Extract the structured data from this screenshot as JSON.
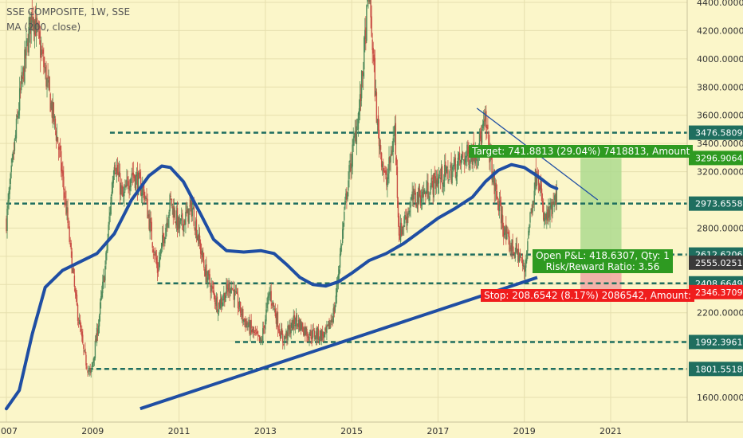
{
  "header": {
    "symbol_line": "SSE COMPOSITE, 1W, SSE",
    "indicator_line": "MA (200, close)"
  },
  "colors": {
    "background": "#fbf6c9",
    "grid": "#e6dfae",
    "candle_up": "#4f8a5b",
    "candle_down": "#c94f45",
    "ma": "#1f4ea3",
    "trendline": "#1f4ea3",
    "level": "#1f6e5f",
    "target_fill": "#a9d98c",
    "target_label": "#2e9a21",
    "stop_fill": "#f0a1a1",
    "stop_label": "#f01d1d",
    "pnl_label": "#2e9a21",
    "price_tag": "#1f6e5f"
  },
  "chart_data": {
    "type": "candlestick",
    "title": "SSE COMPOSITE, 1W, SSE",
    "indicator": "MA (200, close)",
    "x_ticks": [
      "2007",
      "2009",
      "2011",
      "2013",
      "2015",
      "2017",
      "2019",
      "2021"
    ],
    "y_ticks": [
      "1600.0000",
      "1800.0000",
      "2000.0000",
      "2200.0000",
      "2400.0000",
      "2600.0000",
      "2800.0000",
      "3000.0000",
      "3200.0000",
      "3400.0000",
      "3600.0000",
      "3800.0000",
      "4000.0000",
      "4200.0000",
      "4400.0000"
    ],
    "ylim": [
      1520,
      4420
    ],
    "xlim": [
      2007,
      2022.6
    ],
    "close_path": [
      [
        2007.0,
        2850
      ],
      [
        2007.3,
        3700
      ],
      [
        2007.6,
        4350
      ],
      [
        2007.9,
        3900
      ],
      [
        2008.2,
        3400
      ],
      [
        2008.4,
        2900
      ],
      [
        2008.6,
        2300
      ],
      [
        2008.8,
        1900
      ],
      [
        2008.95,
        1750
      ],
      [
        2009.1,
        2050
      ],
      [
        2009.3,
        2550
      ],
      [
        2009.5,
        3300
      ],
      [
        2009.7,
        3000
      ],
      [
        2009.9,
        3200
      ],
      [
        2010.2,
        3050
      ],
      [
        2010.5,
        2500
      ],
      [
        2010.8,
        3000
      ],
      [
        2011.0,
        2800
      ],
      [
        2011.3,
        2950
      ],
      [
        2011.6,
        2500
      ],
      [
        2011.9,
        2250
      ],
      [
        2012.2,
        2400
      ],
      [
        2012.5,
        2150
      ],
      [
        2012.9,
        1980
      ],
      [
        2013.1,
        2350
      ],
      [
        2013.4,
        2000
      ],
      [
        2013.7,
        2150
      ],
      [
        2014.0,
        2050
      ],
      [
        2014.4,
        2040
      ],
      [
        2014.6,
        2220
      ],
      [
        2014.9,
        3100
      ],
      [
        2015.2,
        3700
      ],
      [
        2015.4,
        4500
      ],
      [
        2015.6,
        3500
      ],
      [
        2015.8,
        3100
      ],
      [
        2016.0,
        3500
      ],
      [
        2016.1,
        2750
      ],
      [
        2016.4,
        3000
      ],
      [
        2016.7,
        3050
      ],
      [
        2017.0,
        3150
      ],
      [
        2017.3,
        3200
      ],
      [
        2017.6,
        3300
      ],
      [
        2017.9,
        3350
      ],
      [
        2018.1,
        3550
      ],
      [
        2018.3,
        3100
      ],
      [
        2018.6,
        2700
      ],
      [
        2018.9,
        2600
      ],
      [
        2019.0,
        2480
      ],
      [
        2019.1,
        2800
      ],
      [
        2019.3,
        3250
      ],
      [
        2019.45,
        2850
      ],
      [
        2019.6,
        2900
      ],
      [
        2019.75,
        3000
      ]
    ],
    "ma_path": [
      [
        2007.0,
        1520
      ],
      [
        2007.3,
        1650
      ],
      [
        2007.6,
        2050
      ],
      [
        2007.9,
        2380
      ],
      [
        2008.3,
        2500
      ],
      [
        2008.7,
        2560
      ],
      [
        2009.1,
        2620
      ],
      [
        2009.5,
        2760
      ],
      [
        2009.9,
        3000
      ],
      [
        2010.3,
        3170
      ],
      [
        2010.6,
        3240
      ],
      [
        2010.8,
        3230
      ],
      [
        2011.1,
        3130
      ],
      [
        2011.5,
        2900
      ],
      [
        2011.8,
        2720
      ],
      [
        2012.1,
        2640
      ],
      [
        2012.5,
        2630
      ],
      [
        2012.9,
        2640
      ],
      [
        2013.2,
        2620
      ],
      [
        2013.5,
        2540
      ],
      [
        2013.8,
        2450
      ],
      [
        2014.1,
        2400
      ],
      [
        2014.4,
        2390
      ],
      [
        2014.7,
        2420
      ],
      [
        2015.0,
        2480
      ],
      [
        2015.4,
        2570
      ],
      [
        2015.8,
        2620
      ],
      [
        2016.2,
        2690
      ],
      [
        2016.6,
        2780
      ],
      [
        2017.0,
        2870
      ],
      [
        2017.4,
        2940
      ],
      [
        2017.8,
        3020
      ],
      [
        2018.1,
        3130
      ],
      [
        2018.4,
        3210
      ],
      [
        2018.7,
        3250
      ],
      [
        2019.0,
        3230
      ],
      [
        2019.3,
        3170
      ],
      [
        2019.6,
        3100
      ],
      [
        2019.75,
        3080
      ]
    ],
    "trendlines": [
      {
        "from": [
          2010.1,
          1520
        ],
        "to": [
          2019.3,
          2450
        ],
        "style": "thick"
      },
      {
        "from": [
          2017.9,
          3650
        ],
        "to": [
          2020.7,
          3000
        ],
        "style": "thin"
      }
    ],
    "levels": [
      {
        "value": 3476.5809,
        "label": "3476.5809",
        "x_start": 2009.4
      },
      {
        "value": 2973.6558,
        "label": "2973.6558",
        "x_start": 2007.0
      },
      {
        "value": 2612.6206,
        "label": "2612.6206",
        "x_start": 2015.9
      },
      {
        "value": 2408.6649,
        "label": "2408.6649",
        "x_start": 2010.5
      },
      {
        "value": 1992.3961,
        "label": "1992.3961",
        "x_start": 2012.3
      },
      {
        "value": 1801.5518,
        "label": "1801.5518",
        "x_start": 2008.9
      }
    ],
    "price_tags": [
      {
        "value": 3296.9064,
        "label": "3296.9064",
        "kind": "target"
      },
      {
        "value": 2555.0251,
        "label": "2555.0251",
        "kind": "entry"
      },
      {
        "value": 2346.3709,
        "label": "2346.3709",
        "kind": "stop"
      }
    ],
    "position": {
      "x_from": 2020.3,
      "x_to": 2021.25,
      "entry": 2555.0251,
      "target": 3296.9064,
      "stop": 2346.3709,
      "target_text": "Target: 741.8813 (29.04%) 7418813, Amount",
      "pnl_text": "Open P&L: 418.6307, Qty: 1",
      "rr_text": "Risk/Reward Ratio: 3.56",
      "stop_text": "Stop: 208.6542 (8.17%) 2086542, Amount:"
    }
  }
}
